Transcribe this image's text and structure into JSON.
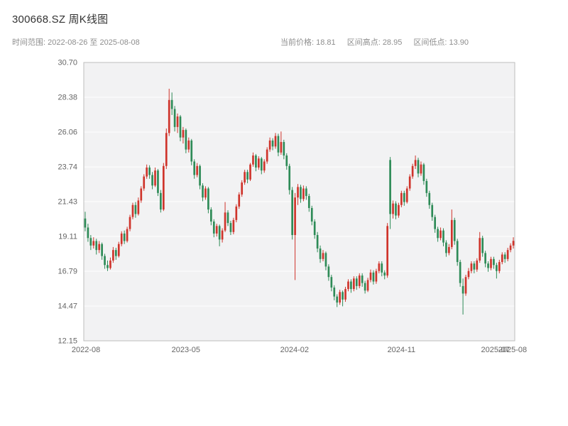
{
  "header": {
    "title": "300668.SZ 周K线图",
    "subtitle_left": "时间范围: 2022-08-26 至 2025-08-08",
    "stats": [
      "当前价格: 18.81",
      "区间高点: 28.95",
      "区间低点: 13.90"
    ]
  },
  "chart_data": {
    "type": "candlestick",
    "title": "300668.SZ 周K线图",
    "symbol": "300668.SZ",
    "interval": "weekly",
    "date_start": "2022-08-26",
    "date_end": "2025-08-08",
    "current_price": 18.81,
    "range_high": 28.95,
    "range_low": 13.9,
    "ylim": [
      12.15,
      30.7
    ],
    "grid": "horizontal",
    "y_ticks": [
      "30.70",
      "28.38",
      "26.06",
      "23.74",
      "21.43",
      "19.11",
      "16.79",
      "14.47",
      "12.15"
    ],
    "x_ticks": [
      {
        "label": "2022-08",
        "pos": 0.005
      },
      {
        "label": "2023-05",
        "pos": 0.237
      },
      {
        "label": "2024-02",
        "pos": 0.489
      },
      {
        "label": "2024-11",
        "pos": 0.737
      },
      {
        "label": "2025-07",
        "pos": 0.955
      },
      {
        "label": "2025-08",
        "pos": 0.995
      }
    ],
    "colors": {
      "up": "#cf342b",
      "down": "#2e8b57",
      "plot_bg": "#f2f2f3",
      "grid": "#ffffff",
      "frame": "#bdbdbd",
      "tick_text": "#666666"
    },
    "candles": [
      [
        20.3,
        20.75,
        19.45,
        19.7
      ],
      [
        19.7,
        19.95,
        18.75,
        19.0
      ],
      [
        19.0,
        19.2,
        18.2,
        18.5
      ],
      [
        18.5,
        19.05,
        18.3,
        18.8
      ],
      [
        18.8,
        18.95,
        17.9,
        18.2
      ],
      [
        18.2,
        18.8,
        18.0,
        18.6
      ],
      [
        18.6,
        18.7,
        17.55,
        17.8
      ],
      [
        17.8,
        17.95,
        16.95,
        17.2
      ],
      [
        17.2,
        17.5,
        16.8,
        17.0
      ],
      [
        17.0,
        17.7,
        16.9,
        17.5
      ],
      [
        17.5,
        18.4,
        17.35,
        18.2
      ],
      [
        18.2,
        18.35,
        17.55,
        17.8
      ],
      [
        17.8,
        18.75,
        17.7,
        18.6
      ],
      [
        18.6,
        19.45,
        18.45,
        19.3
      ],
      [
        19.3,
        19.5,
        18.6,
        18.8
      ],
      [
        18.8,
        19.75,
        18.7,
        19.6
      ],
      [
        19.6,
        20.55,
        19.45,
        20.4
      ],
      [
        20.4,
        21.35,
        20.25,
        21.2
      ],
      [
        21.2,
        21.4,
        20.35,
        20.6
      ],
      [
        20.6,
        21.7,
        20.5,
        21.5
      ],
      [
        21.5,
        22.45,
        21.35,
        22.3
      ],
      [
        22.3,
        23.25,
        22.15,
        23.1
      ],
      [
        23.1,
        23.9,
        22.95,
        23.7
      ],
      [
        23.7,
        23.85,
        22.95,
        23.2
      ],
      [
        23.2,
        23.4,
        22.25,
        22.5
      ],
      [
        22.5,
        23.7,
        22.4,
        23.5
      ],
      [
        23.5,
        23.6,
        21.8,
        22.0
      ],
      [
        22.0,
        22.2,
        20.7,
        20.9
      ],
      [
        20.9,
        24.0,
        20.8,
        23.8
      ],
      [
        23.8,
        26.3,
        23.6,
        26.0
      ],
      [
        26.0,
        28.95,
        25.8,
        28.2
      ],
      [
        28.2,
        28.7,
        27.2,
        27.6
      ],
      [
        27.6,
        27.8,
        26.1,
        26.4
      ],
      [
        26.4,
        27.3,
        26.0,
        27.1
      ],
      [
        27.1,
        27.2,
        25.45,
        25.7
      ],
      [
        25.7,
        26.4,
        25.3,
        26.2
      ],
      [
        26.2,
        26.3,
        24.65,
        24.9
      ],
      [
        24.9,
        25.7,
        24.7,
        25.5
      ],
      [
        25.5,
        25.6,
        23.85,
        24.1
      ],
      [
        24.1,
        24.25,
        22.95,
        23.2
      ],
      [
        23.2,
        24.0,
        23.05,
        23.8
      ],
      [
        23.8,
        23.9,
        22.25,
        22.5
      ],
      [
        22.5,
        22.65,
        21.45,
        21.7
      ],
      [
        21.7,
        22.45,
        21.55,
        22.3
      ],
      [
        22.3,
        22.4,
        20.65,
        20.9
      ],
      [
        20.9,
        21.05,
        19.85,
        20.1
      ],
      [
        20.1,
        20.25,
        19.05,
        19.3
      ],
      [
        19.3,
        19.95,
        19.1,
        19.8
      ],
      [
        19.8,
        19.9,
        18.45,
        18.9
      ],
      [
        18.9,
        19.65,
        18.7,
        19.5
      ],
      [
        19.5,
        21.4,
        19.4,
        20.7
      ],
      [
        20.7,
        20.85,
        19.8,
        20.0
      ],
      [
        20.0,
        20.15,
        19.2,
        19.4
      ],
      [
        19.4,
        20.35,
        19.25,
        20.2
      ],
      [
        20.2,
        21.25,
        20.05,
        21.1
      ],
      [
        21.1,
        22.05,
        20.95,
        21.9
      ],
      [
        21.9,
        22.85,
        21.75,
        22.7
      ],
      [
        22.7,
        23.55,
        22.55,
        23.4
      ],
      [
        23.4,
        23.55,
        22.65,
        22.9
      ],
      [
        22.9,
        24.0,
        22.8,
        23.9
      ],
      [
        23.9,
        24.7,
        23.75,
        24.5
      ],
      [
        24.5,
        24.6,
        23.45,
        23.7
      ],
      [
        23.7,
        24.45,
        23.55,
        24.3
      ],
      [
        24.3,
        24.4,
        23.25,
        23.5
      ],
      [
        23.5,
        24.25,
        23.35,
        24.1
      ],
      [
        24.1,
        25.05,
        23.95,
        24.9
      ],
      [
        24.9,
        25.7,
        24.75,
        25.5
      ],
      [
        25.5,
        25.65,
        24.85,
        25.1
      ],
      [
        25.1,
        26.0,
        24.95,
        25.8
      ],
      [
        25.8,
        25.95,
        24.45,
        24.7
      ],
      [
        24.7,
        26.1,
        24.55,
        25.4
      ],
      [
        25.4,
        25.55,
        24.25,
        24.5
      ],
      [
        24.5,
        24.65,
        23.55,
        23.8
      ],
      [
        23.8,
        23.95,
        21.9,
        22.2
      ],
      [
        22.2,
        22.4,
        18.9,
        19.2
      ],
      [
        19.2,
        22.0,
        16.2,
        21.7
      ],
      [
        21.7,
        22.6,
        21.2,
        22.4
      ],
      [
        22.4,
        22.55,
        21.35,
        21.6
      ],
      [
        21.6,
        22.5,
        21.45,
        22.3
      ],
      [
        22.3,
        22.45,
        21.55,
        21.8
      ],
      [
        21.8,
        21.95,
        20.75,
        21.0
      ],
      [
        21.0,
        21.15,
        19.85,
        20.1
      ],
      [
        20.1,
        20.25,
        18.95,
        19.2
      ],
      [
        19.2,
        19.4,
        18.05,
        18.3
      ],
      [
        18.3,
        18.5,
        17.35,
        17.6
      ],
      [
        17.6,
        18.2,
        17.45,
        18.0
      ],
      [
        18.0,
        18.1,
        16.85,
        17.1
      ],
      [
        17.1,
        17.25,
        16.15,
        16.4
      ],
      [
        16.4,
        16.55,
        15.45,
        15.7
      ],
      [
        15.7,
        15.85,
        14.85,
        15.1
      ],
      [
        15.1,
        15.25,
        14.4,
        14.7
      ],
      [
        14.7,
        15.55,
        14.55,
        15.4
      ],
      [
        15.4,
        15.5,
        14.45,
        14.9
      ],
      [
        14.9,
        15.75,
        14.75,
        15.6
      ],
      [
        15.6,
        16.25,
        15.45,
        16.1
      ],
      [
        16.1,
        16.25,
        15.35,
        15.6
      ],
      [
        15.6,
        16.45,
        15.45,
        16.3
      ],
      [
        16.3,
        16.45,
        15.55,
        15.8
      ],
      [
        15.8,
        16.65,
        15.65,
        16.5
      ],
      [
        16.5,
        16.65,
        15.75,
        16.0
      ],
      [
        16.0,
        16.15,
        15.3,
        15.5
      ],
      [
        15.5,
        16.35,
        15.4,
        16.2
      ],
      [
        16.2,
        16.9,
        16.05,
        16.7
      ],
      [
        16.7,
        16.85,
        15.9,
        16.1
      ],
      [
        16.1,
        16.95,
        15.95,
        16.8
      ],
      [
        16.8,
        17.45,
        16.65,
        17.3
      ],
      [
        17.3,
        17.45,
        16.45,
        16.7
      ],
      [
        16.7,
        16.85,
        16.25,
        16.5
      ],
      [
        16.5,
        20.0,
        16.35,
        19.8
      ],
      [
        24.2,
        24.4,
        19.6,
        20.6
      ],
      [
        20.6,
        21.5,
        20.3,
        21.3
      ],
      [
        21.3,
        21.45,
        20.25,
        20.5
      ],
      [
        20.5,
        21.35,
        20.35,
        21.2
      ],
      [
        21.2,
        22.15,
        21.05,
        22.0
      ],
      [
        22.0,
        22.15,
        21.15,
        21.4
      ],
      [
        21.4,
        22.45,
        21.3,
        22.3
      ],
      [
        22.3,
        23.25,
        22.15,
        23.1
      ],
      [
        23.1,
        23.95,
        22.95,
        23.8
      ],
      [
        23.8,
        24.5,
        23.6,
        24.2
      ],
      [
        24.2,
        24.35,
        23.05,
        23.3
      ],
      [
        23.3,
        24.1,
        23.15,
        23.9
      ],
      [
        23.9,
        24.0,
        22.55,
        22.8
      ],
      [
        22.8,
        22.95,
        21.75,
        22.0
      ],
      [
        22.0,
        22.15,
        20.95,
        21.2
      ],
      [
        21.2,
        21.35,
        20.15,
        20.4
      ],
      [
        20.4,
        20.55,
        19.35,
        19.6
      ],
      [
        19.6,
        19.75,
        18.75,
        19.0
      ],
      [
        19.0,
        19.7,
        18.85,
        19.5
      ],
      [
        19.5,
        19.65,
        18.45,
        18.7
      ],
      [
        18.7,
        18.85,
        17.75,
        18.0
      ],
      [
        18.0,
        18.6,
        17.85,
        18.4
      ],
      [
        18.4,
        20.9,
        18.25,
        20.2
      ],
      [
        20.2,
        20.35,
        18.55,
        18.8
      ],
      [
        18.8,
        18.95,
        17.15,
        17.4
      ],
      [
        17.4,
        17.55,
        15.75,
        16.0
      ],
      [
        15.8,
        16.3,
        13.9,
        15.3
      ],
      [
        15.3,
        16.55,
        15.15,
        16.4
      ],
      [
        16.4,
        17.0,
        16.25,
        16.8
      ],
      [
        16.8,
        17.45,
        16.65,
        17.3
      ],
      [
        17.3,
        17.45,
        16.65,
        16.9
      ],
      [
        16.9,
        17.65,
        16.75,
        17.5
      ],
      [
        17.5,
        19.4,
        17.35,
        19.0
      ],
      [
        19.0,
        19.15,
        17.75,
        18.0
      ],
      [
        18.0,
        18.15,
        17.05,
        17.3
      ],
      [
        17.3,
        17.45,
        16.75,
        17.0
      ],
      [
        17.0,
        17.75,
        16.85,
        17.6
      ],
      [
        17.6,
        17.75,
        16.95,
        17.2
      ],
      [
        17.2,
        17.35,
        16.3,
        16.8
      ],
      [
        16.8,
        17.55,
        16.65,
        17.4
      ],
      [
        17.4,
        18.05,
        17.25,
        17.9
      ],
      [
        17.9,
        18.05,
        17.35,
        17.6
      ],
      [
        17.6,
        18.35,
        17.45,
        18.2
      ],
      [
        18.2,
        18.65,
        18.05,
        18.5
      ],
      [
        18.5,
        19.05,
        18.3,
        18.81
      ]
    ]
  }
}
